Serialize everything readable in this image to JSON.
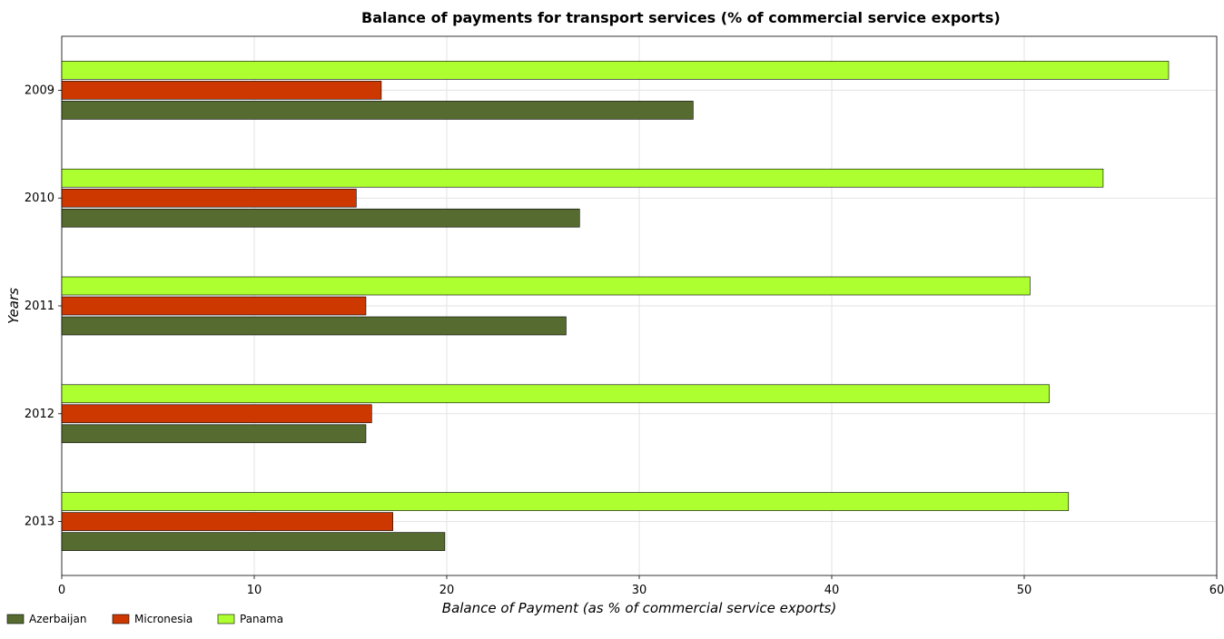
{
  "chart_data": {
    "type": "bar",
    "orientation": "horizontal",
    "title": "Balance of payments for transport services (% of commercial service exports)",
    "xlabel": "Balance of Payment (as % of commercial service exports)",
    "ylabel": "Years",
    "categories": [
      "2009",
      "2010",
      "2011",
      "2012",
      "2013"
    ],
    "xlim": [
      0,
      60
    ],
    "xticks": [
      "0",
      "10",
      "20",
      "30",
      "40",
      "50",
      "60"
    ],
    "grid": true,
    "legend_position": "bottom-left",
    "series": [
      {
        "name": "Azerbaijan",
        "color": "#556b2f",
        "values": [
          32.8,
          26.9,
          26.2,
          15.8,
          19.9
        ]
      },
      {
        "name": "Micronesia",
        "color": "#cd3700",
        "values": [
          16.6,
          15.3,
          15.8,
          16.1,
          17.2
        ]
      },
      {
        "name": "Panama",
        "color": "#adff2f",
        "values": [
          57.5,
          54.1,
          50.3,
          51.3,
          52.3
        ]
      }
    ]
  }
}
